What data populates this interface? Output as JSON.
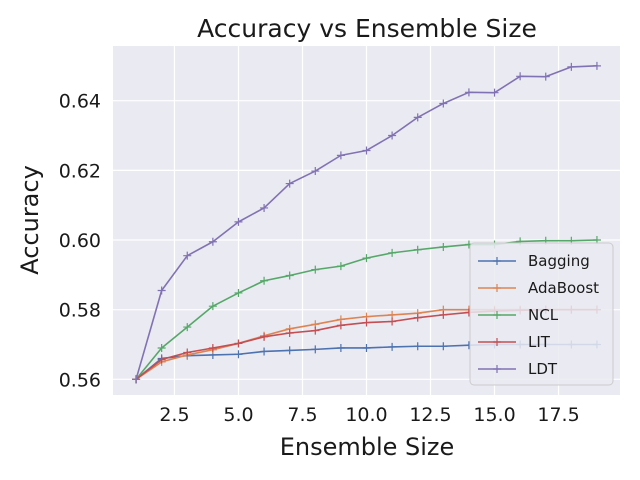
{
  "chart_data": {
    "type": "line",
    "title": "Accuracy vs Ensemble Size",
    "xlabel": "Ensemble Size",
    "ylabel": "Accuracy",
    "xlim": [
      0.1,
      19.9
    ],
    "ylim": [
      0.5555,
      0.6557
    ],
    "xticks": [
      2.5,
      5.0,
      7.5,
      10.0,
      12.5,
      15.0,
      17.5
    ],
    "xtick_labels": [
      "2.5",
      "5.0",
      "7.5",
      "10.0",
      "12.5",
      "15.0",
      "17.5"
    ],
    "yticks": [
      0.56,
      0.58,
      0.6,
      0.62,
      0.64
    ],
    "ytick_labels": [
      "0.56",
      "0.58",
      "0.60",
      "0.62",
      "0.64"
    ],
    "grid": true,
    "legend_position": "lower-right",
    "x": [
      1,
      2,
      3,
      4,
      5,
      6,
      7,
      8,
      9,
      10,
      11,
      12,
      13,
      14,
      15,
      16,
      17,
      18,
      19
    ],
    "series": [
      {
        "name": "Bagging",
        "color": "#4c72b0",
        "values": [
          0.56,
          0.566,
          0.5668,
          0.567,
          0.5672,
          0.568,
          0.5683,
          0.5686,
          0.569,
          0.569,
          0.5693,
          0.5695,
          0.5695,
          0.5698,
          0.57,
          0.57,
          0.57,
          0.57,
          0.57
        ]
      },
      {
        "name": "AdaBoost",
        "color": "#dd8452",
        "values": [
          0.56,
          0.565,
          0.567,
          0.5685,
          0.5703,
          0.5725,
          0.5745,
          0.5758,
          0.5772,
          0.578,
          0.5785,
          0.579,
          0.58,
          0.58,
          0.58,
          0.58,
          0.58,
          0.58,
          0.58
        ]
      },
      {
        "name": "NCL",
        "color": "#55a868",
        "values": [
          0.56,
          0.569,
          0.575,
          0.581,
          0.5848,
          0.5883,
          0.5898,
          0.5915,
          0.5925,
          0.5948,
          0.5963,
          0.5972,
          0.598,
          0.5987,
          0.5987,
          0.5996,
          0.5998,
          0.5998,
          0.6
        ]
      },
      {
        "name": "LIT",
        "color": "#c44e52",
        "values": [
          0.56,
          0.5657,
          0.5677,
          0.569,
          0.5703,
          0.5722,
          0.5733,
          0.574,
          0.5755,
          0.5763,
          0.5766,
          0.5777,
          0.5785,
          0.5792,
          0.5796,
          0.5798,
          0.58,
          0.58,
          0.58
        ]
      },
      {
        "name": "LDT",
        "color": "#8172b3",
        "values": [
          0.56,
          0.5855,
          0.5955,
          0.5995,
          0.6052,
          0.6092,
          0.6162,
          0.6198,
          0.6243,
          0.6257,
          0.63,
          0.6352,
          0.6392,
          0.6424,
          0.6423,
          0.647,
          0.6469,
          0.6497,
          0.65
        ]
      }
    ]
  }
}
